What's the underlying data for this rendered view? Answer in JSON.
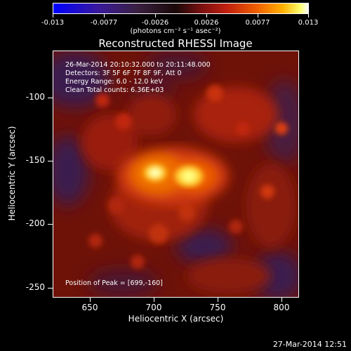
{
  "colorbar": {
    "ticks": [
      "-0.013",
      "-0.0077",
      "-0.0026",
      "0.0026",
      "0.0077",
      "0.013"
    ],
    "units": "(photons cm⁻² s⁻¹ asec⁻²)"
  },
  "title": "Reconstructed RHESSI Image",
  "annotations": {
    "time": "26-Mar-2014 20:10:32.000 to 20:11:48.000",
    "detectors": "Detectors: 3F 5F 6F 7F 8F 9F, Att 0",
    "energy": "Energy Range: 6.0 - 12.0 keV",
    "clean": "Clean    Total counts: 6.36E+03",
    "peak": "Position of Peak = [699,-160]"
  },
  "axes": {
    "xlabel": "Heliocentric X (arcsec)",
    "ylabel": "Heliocentric Y (arcsec)",
    "xticks": [
      "650",
      "700",
      "750",
      "800"
    ],
    "yticks": [
      "-100",
      "-150",
      "-200",
      "-250"
    ]
  },
  "footer": "27-Mar-2014 12:51",
  "colors": {
    "background": "#000000",
    "colorbar_min": "#0000ff",
    "colorbar_max": "#ffffff",
    "map_base": "#6a1008"
  }
}
